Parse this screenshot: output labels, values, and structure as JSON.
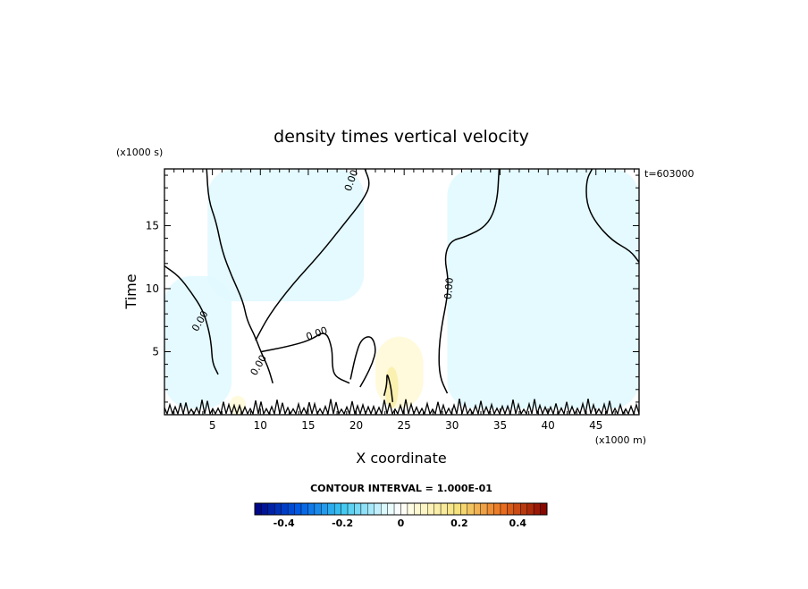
{
  "chart_data": {
    "type": "heatmap",
    "title": "density times vertical velocity",
    "xlabel": "X coordinate",
    "ylabel": "Time",
    "x_unit": "(x1000 m)",
    "y_unit": "(x1000 s)",
    "time_stamp": "t=603000",
    "xlim": [
      0,
      49.5
    ],
    "ylim": [
      0,
      19.5
    ],
    "x_ticks": [
      5,
      10,
      15,
      20,
      25,
      30,
      35,
      40,
      45
    ],
    "y_ticks": [
      5,
      10,
      15
    ],
    "contour_label": "0.00",
    "contour_interval": "CONTOUR INTERVAL = 1.000E-01",
    "colorbar": {
      "min": -0.5,
      "max": 0.5,
      "tick_values": [
        -0.4,
        -0.2,
        0,
        0.2,
        0.4
      ],
      "tick_labels": [
        "-0.4",
        "-0.2",
        "0",
        "0.2",
        "0.4"
      ]
    },
    "zero_contour_lines": [
      [
        [
          4.4,
          19.5
        ],
        [
          4.6,
          17
        ],
        [
          5.4,
          15.3
        ],
        [
          6.0,
          13
        ],
        [
          7.0,
          11
        ],
        [
          8.2,
          9
        ],
        [
          8.6,
          7.5
        ],
        [
          9.4,
          6.3
        ],
        [
          10.1,
          4.9
        ],
        [
          10.8,
          3.8
        ],
        [
          11.3,
          2.5
        ]
      ],
      [
        [
          0,
          11.8
        ],
        [
          1.5,
          11
        ],
        [
          2.8,
          9.7
        ],
        [
          4.0,
          8.3
        ],
        [
          4.6,
          6.8
        ],
        [
          4.9,
          5.5
        ],
        [
          5.0,
          4.1
        ],
        [
          5.6,
          3.2
        ]
      ],
      [
        [
          9.5,
          5.9
        ],
        [
          10.9,
          7.9
        ],
        [
          13.3,
          10.3
        ],
        [
          16.3,
          12.8
        ],
        [
          18.8,
          15.2
        ],
        [
          20.7,
          17.0
        ],
        [
          21.5,
          18.3
        ],
        [
          20.9,
          19.5
        ]
      ],
      [
        [
          10.1,
          5.0
        ],
        [
          12.8,
          5.4
        ],
        [
          15.2,
          5.9
        ],
        [
          16.8,
          6.7
        ],
        [
          17.5,
          5.3
        ],
        [
          17.5,
          3.8
        ],
        [
          17.8,
          3.0
        ],
        [
          19.3,
          2.5
        ]
      ],
      [
        [
          19.4,
          2.8
        ],
        [
          19.9,
          4.6
        ],
        [
          20.5,
          6.0
        ],
        [
          21.6,
          6.3
        ],
        [
          22.1,
          5.2
        ],
        [
          21.7,
          4.1
        ],
        [
          21.0,
          3.0
        ],
        [
          20.4,
          2.2
        ]
      ],
      [
        [
          34.9,
          19.5
        ],
        [
          34.7,
          16.8
        ],
        [
          33.7,
          15.0
        ],
        [
          31.4,
          14.1
        ],
        [
          29.8,
          13.8
        ],
        [
          29.2,
          12.5
        ],
        [
          29.6,
          10.8
        ],
        [
          29.5,
          9.3
        ],
        [
          28.9,
          7.0
        ],
        [
          28.6,
          5.0
        ],
        [
          28.7,
          3.0
        ],
        [
          29.5,
          1.7
        ]
      ],
      [
        [
          44.6,
          19.5
        ],
        [
          44.0,
          18.6
        ],
        [
          44.0,
          16.8
        ],
        [
          44.9,
          15.3
        ],
        [
          46.7,
          13.8
        ],
        [
          48.6,
          13.0
        ],
        [
          49.5,
          12.1
        ]
      ],
      [
        [
          22.9,
          1.5
        ],
        [
          23.2,
          2.4
        ],
        [
          23.2,
          3.4
        ],
        [
          23.6,
          2.3
        ],
        [
          23.8,
          1.0
        ]
      ]
    ],
    "shaded_regions": [
      {
        "sign": "negative",
        "level": -0.05,
        "x_range": [
          4.5,
          20.8
        ],
        "y_range": [
          9,
          19.5
        ]
      },
      {
        "sign": "negative",
        "level": -0.05,
        "x_range": [
          29.5,
          49.5
        ],
        "y_range": [
          0.5,
          19.5
        ]
      },
      {
        "sign": "negative",
        "level": -0.05,
        "x_range": [
          0,
          7
        ],
        "y_range": [
          0.5,
          11
        ]
      },
      {
        "sign": "positive",
        "level": 0.05,
        "x_range": [
          22,
          27
        ],
        "y_range": [
          0.5,
          6.2
        ]
      },
      {
        "sign": "positive",
        "level": 0.12,
        "x_range": [
          23,
          24.4
        ],
        "y_range": [
          0.5,
          3.8
        ]
      },
      {
        "sign": "positive",
        "level": 0.05,
        "x_range": [
          6.8,
          8.5
        ],
        "y_range": [
          0,
          1.5
        ]
      }
    ]
  }
}
